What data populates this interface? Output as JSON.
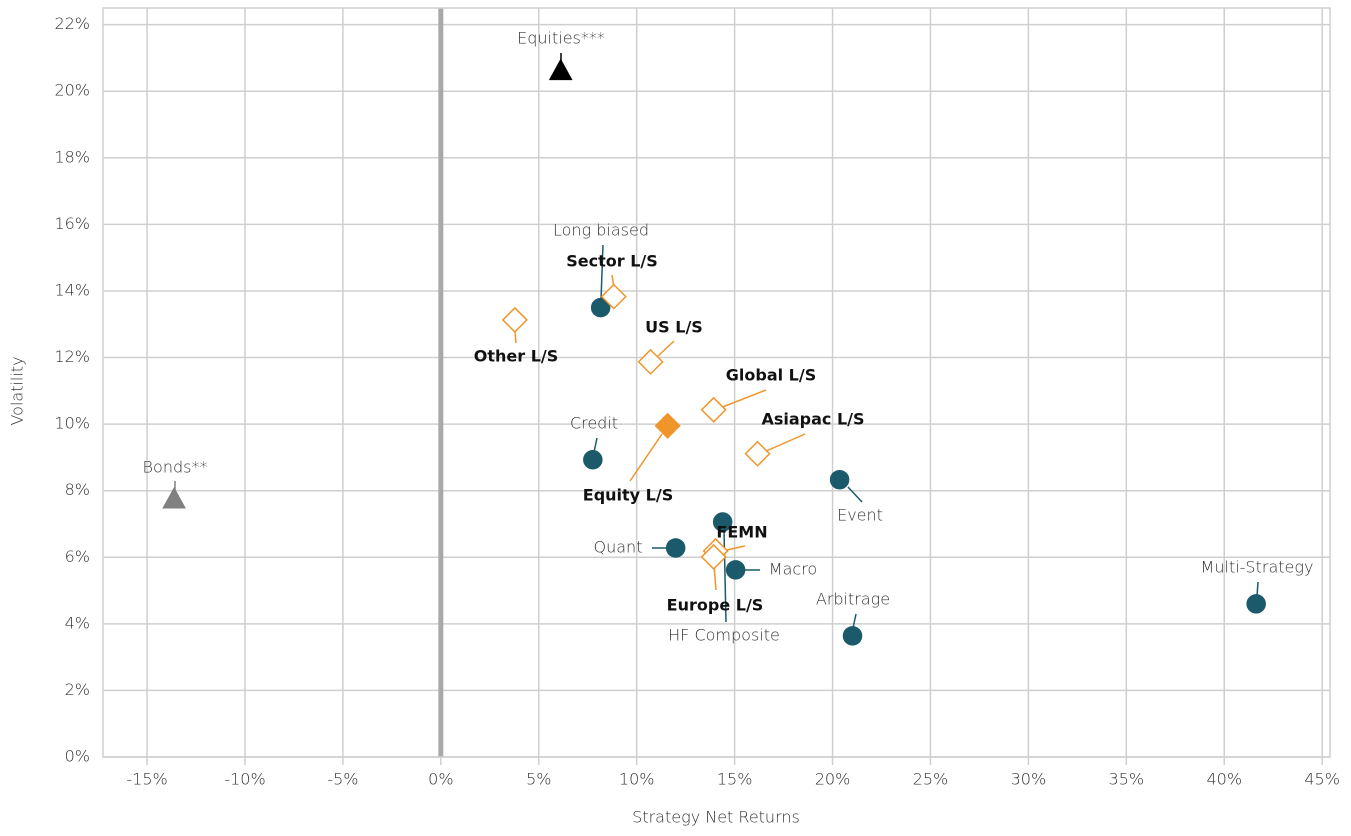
{
  "chart_data": {
    "type": "scatter",
    "x_label": "Strategy Net Returns",
    "y_label": "Volatility",
    "xlim": [
      -17.25,
      45.4
    ],
    "ylim": [
      0,
      22.5
    ],
    "xticks": [
      {
        "value": -15,
        "label": "-15%"
      },
      {
        "value": -10,
        "label": "-10%"
      },
      {
        "value": -5,
        "label": "-5%"
      },
      {
        "value": 0,
        "label": "0%"
      },
      {
        "value": 5,
        "label": "5%"
      },
      {
        "value": 10,
        "label": "10%"
      },
      {
        "value": 15,
        "label": "15%"
      },
      {
        "value": 20,
        "label": "20%"
      },
      {
        "value": 25,
        "label": "25%"
      },
      {
        "value": 30,
        "label": "30%"
      },
      {
        "value": 35,
        "label": "35%"
      },
      {
        "value": 40,
        "label": "40%"
      },
      {
        "value": 45,
        "label": "45%"
      }
    ],
    "yticks": [
      {
        "value": 0,
        "label": "0%"
      },
      {
        "value": 2,
        "label": "2%"
      },
      {
        "value": 4,
        "label": "4%"
      },
      {
        "value": 6,
        "label": "6%"
      },
      {
        "value": 8,
        "label": "8%"
      },
      {
        "value": 10,
        "label": "10%"
      },
      {
        "value": 12,
        "label": "12%"
      },
      {
        "value": 14,
        "label": "14%"
      },
      {
        "value": 16,
        "label": "16%"
      },
      {
        "value": 18,
        "label": "18%"
      },
      {
        "value": 20,
        "label": "20%"
      },
      {
        "value": 22,
        "label": "22%"
      }
    ],
    "grid": true,
    "zero_line": true,
    "series": [
      {
        "marker": "circle",
        "filled": true,
        "bold_labels": false,
        "color": "#1b5a6b",
        "labels": [
          "Long biased",
          "Credit",
          "Event",
          "HF Composite",
          "Quant",
          "Macro",
          "Arbitrage",
          "Multi-Strategy"
        ],
        "x": [
          8.16,
          7.76,
          20.36,
          14.39,
          11.99,
          15.05,
          21.02,
          41.63
        ],
        "values": [
          13.5,
          8.93,
          8.33,
          7.06,
          6.28,
          5.62,
          3.64,
          4.6
        ]
      },
      {
        "marker": "diamond",
        "filled": false,
        "bold_labels": true,
        "color": "#f0952a",
        "labels": [
          "Sector L/S",
          "Other L/S",
          "US L/S",
          "Global L/S",
          "Asiapac L/S",
          "FEMN",
          "Europe L/S"
        ],
        "x": [
          8.83,
          3.78,
          10.71,
          13.93,
          16.17,
          14.03,
          13.93
        ],
        "values": [
          13.83,
          13.13,
          11.87,
          10.43,
          9.11,
          6.19,
          6.01
        ]
      },
      {
        "marker": "diamond",
        "filled": true,
        "bold_labels": true,
        "color": "#f0952a",
        "labels": [
          "Equity L/S"
        ],
        "x": [
          11.58
        ],
        "values": [
          9.95
        ]
      },
      {
        "marker": "triangle",
        "filled": true,
        "bold_labels": false,
        "color": "#000000",
        "labels": [
          "Equities***"
        ],
        "x": [
          6.12
        ],
        "values": [
          20.65
        ]
      },
      {
        "marker": "triangle",
        "filled": true,
        "bold_labels": false,
        "color": "#808080",
        "labels": [
          "Bonds**"
        ],
        "x": [
          -13.62
        ],
        "values": [
          7.78
        ]
      }
    ]
  }
}
